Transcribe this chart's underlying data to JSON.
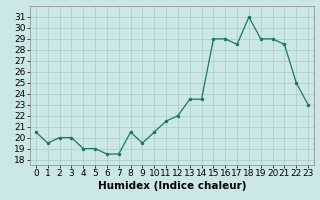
{
  "x": [
    0,
    1,
    2,
    3,
    4,
    5,
    6,
    7,
    8,
    9,
    10,
    11,
    12,
    13,
    14,
    15,
    16,
    17,
    18,
    19,
    20,
    21,
    22,
    23
  ],
  "y": [
    20.5,
    19.5,
    20.0,
    20.0,
    19.0,
    19.0,
    18.5,
    18.5,
    20.5,
    19.5,
    20.5,
    21.5,
    22.0,
    23.5,
    23.5,
    29.0,
    29.0,
    28.5,
    31.0,
    29.0,
    29.0,
    28.5,
    25.0,
    23.0
  ],
  "xlabel": "Humidex (Indice chaleur)",
  "ylim": [
    17.5,
    32
  ],
  "xlim": [
    -0.5,
    23.5
  ],
  "yticks": [
    18,
    19,
    20,
    21,
    22,
    23,
    24,
    25,
    26,
    27,
    28,
    29,
    30,
    31
  ],
  "xticks": [
    0,
    1,
    2,
    3,
    4,
    5,
    6,
    7,
    8,
    9,
    10,
    11,
    12,
    13,
    14,
    15,
    16,
    17,
    18,
    19,
    20,
    21,
    22,
    23
  ],
  "line_color": "#1a7a5e",
  "marker_color": "#1a7a5e",
  "bg_color": "#cce8e6",
  "grid_color": "#aaccca",
  "xlabel_fontsize": 7.5,
  "tick_fontsize": 6.5
}
